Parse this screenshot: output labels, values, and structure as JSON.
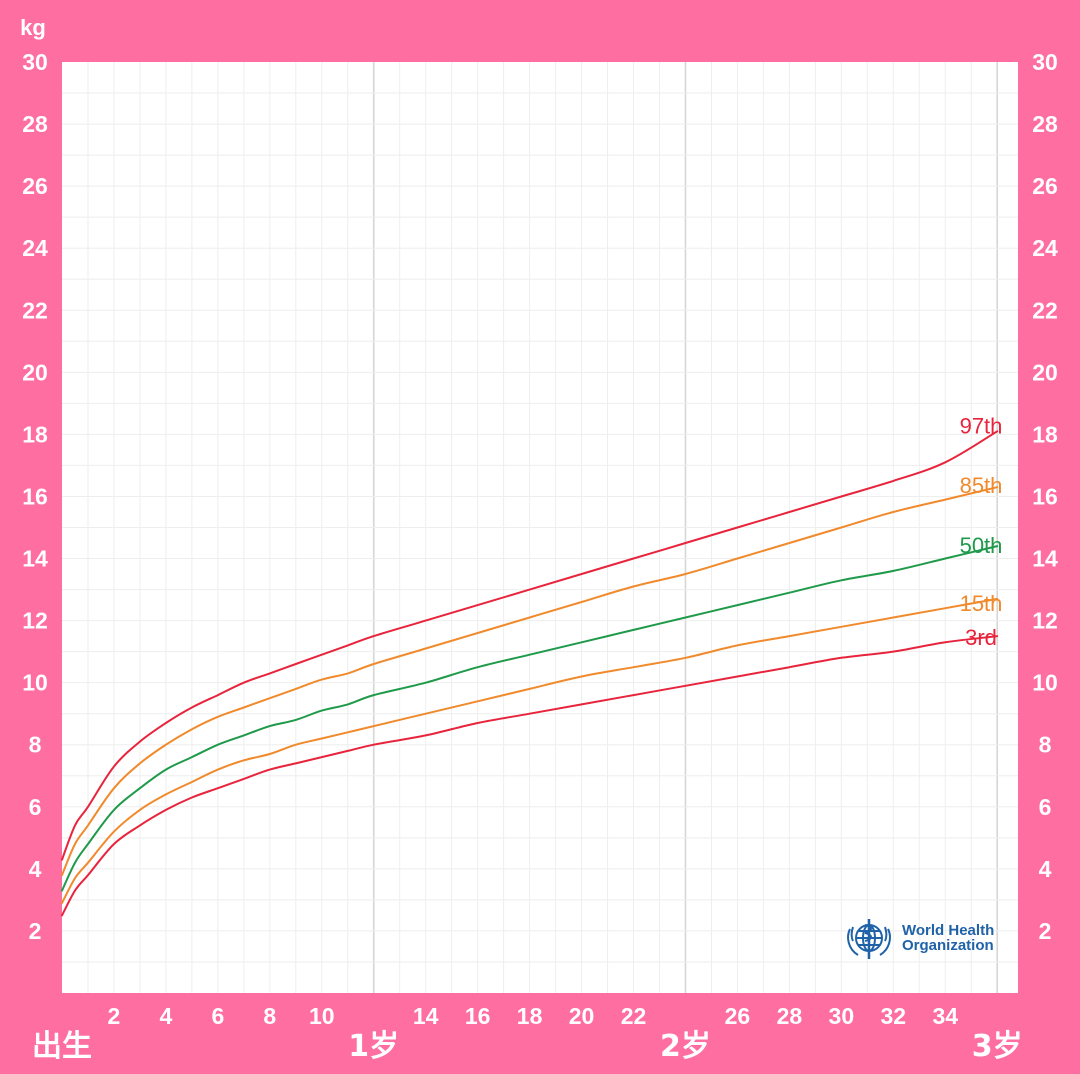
{
  "chart_data": {
    "type": "line",
    "unit_label": "kg",
    "ylim": [
      0,
      30
    ],
    "xlim": [
      0,
      36
    ],
    "y_ticks": [
      2,
      4,
      6,
      8,
      10,
      12,
      14,
      16,
      18,
      20,
      22,
      24,
      26,
      28,
      30
    ],
    "x_ticks": [
      {
        "x": 2,
        "label": "2"
      },
      {
        "x": 4,
        "label": "4"
      },
      {
        "x": 6,
        "label": "6"
      },
      {
        "x": 8,
        "label": "8"
      },
      {
        "x": 10,
        "label": "10"
      },
      {
        "x": 14,
        "label": "14"
      },
      {
        "x": 16,
        "label": "16"
      },
      {
        "x": 18,
        "label": "18"
      },
      {
        "x": 20,
        "label": "20"
      },
      {
        "x": 22,
        "label": "22"
      },
      {
        "x": 26,
        "label": "26"
      },
      {
        "x": 28,
        "label": "28"
      },
      {
        "x": 30,
        "label": "30"
      },
      {
        "x": 32,
        "label": "32"
      },
      {
        "x": 34,
        "label": "34"
      }
    ],
    "x_major_ticks": [
      {
        "x": 0,
        "label": "出生"
      },
      {
        "x": 12,
        "label": "1岁"
      },
      {
        "x": 24,
        "label": "2岁"
      },
      {
        "x": 36,
        "label": "3岁"
      }
    ],
    "grid": true,
    "x": [
      0,
      0.5,
      1,
      2,
      3,
      4,
      5,
      6,
      7,
      8,
      9,
      10,
      11,
      12,
      14,
      16,
      18,
      20,
      22,
      24,
      26,
      28,
      30,
      32,
      34,
      36
    ],
    "series": [
      {
        "name": "97th",
        "color": "#e8243c",
        "values": [
          4.3,
          5.4,
          6.0,
          7.3,
          8.1,
          8.7,
          9.2,
          9.6,
          10.0,
          10.3,
          10.6,
          10.9,
          11.2,
          11.5,
          12.0,
          12.5,
          13.0,
          13.5,
          14.0,
          14.5,
          15.0,
          15.5,
          16.0,
          16.5,
          17.1,
          18.1
        ]
      },
      {
        "name": "85th",
        "color": "#f08a2c",
        "values": [
          3.8,
          4.8,
          5.4,
          6.6,
          7.4,
          8.0,
          8.5,
          8.9,
          9.2,
          9.5,
          9.8,
          10.1,
          10.3,
          10.6,
          11.1,
          11.6,
          12.1,
          12.6,
          13.1,
          13.5,
          14.0,
          14.5,
          15.0,
          15.5,
          15.9,
          16.3
        ]
      },
      {
        "name": "50th",
        "color": "#1f9a4a",
        "values": [
          3.3,
          4.2,
          4.8,
          5.9,
          6.6,
          7.2,
          7.6,
          8.0,
          8.3,
          8.6,
          8.8,
          9.1,
          9.3,
          9.6,
          10.0,
          10.5,
          10.9,
          11.3,
          11.7,
          12.1,
          12.5,
          12.9,
          13.3,
          13.6,
          14.0,
          14.4
        ]
      },
      {
        "name": "15th",
        "color": "#f08a2c",
        "values": [
          2.9,
          3.7,
          4.2,
          5.2,
          5.9,
          6.4,
          6.8,
          7.2,
          7.5,
          7.7,
          8.0,
          8.2,
          8.4,
          8.6,
          9.0,
          9.4,
          9.8,
          10.2,
          10.5,
          10.8,
          11.2,
          11.5,
          11.8,
          12.1,
          12.4,
          12.7
        ]
      },
      {
        "name": "3rd",
        "color": "#e8243c",
        "values": [
          2.5,
          3.3,
          3.8,
          4.8,
          5.4,
          5.9,
          6.3,
          6.6,
          6.9,
          7.2,
          7.4,
          7.6,
          7.8,
          8.0,
          8.3,
          8.7,
          9.0,
          9.3,
          9.6,
          9.9,
          10.2,
          10.5,
          10.8,
          11.0,
          11.3,
          11.5
        ]
      }
    ]
  },
  "logo": {
    "line1": "World Health",
    "line2": "Organization"
  },
  "colors": {
    "frame": "#ff6ea0",
    "plot_background": "#ffffff",
    "grid_minor": "#eeeeee",
    "grid_major": "#d6d6d6"
  }
}
